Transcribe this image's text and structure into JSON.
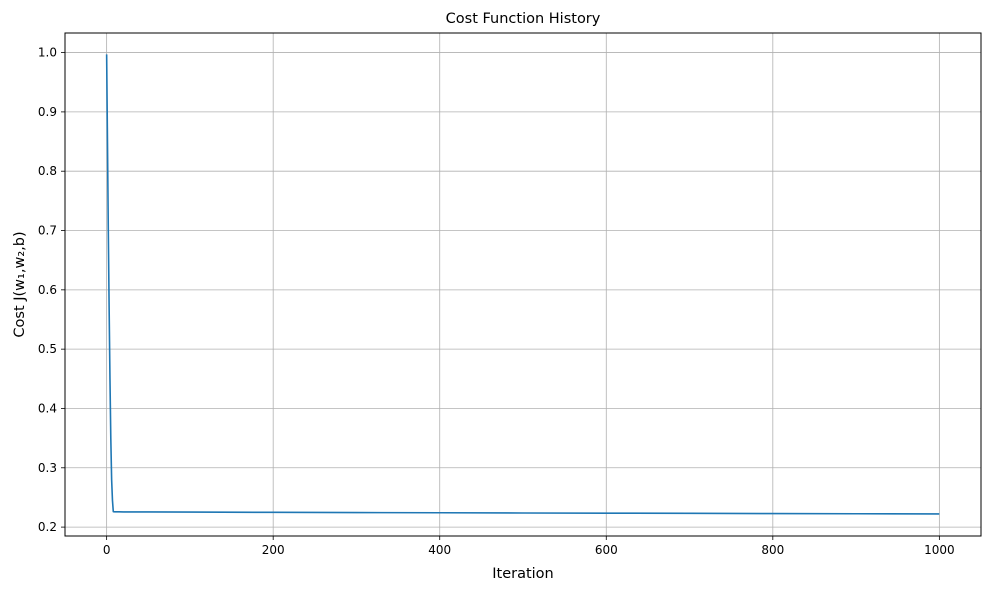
{
  "chart_data": {
    "type": "line",
    "title": "Cost Function History",
    "xlabel": "Iteration",
    "ylabel": "Cost J(w₁,w₂,b)",
    "xlim": [
      -50,
      1050
    ],
    "ylim": [
      0.185,
      1.033
    ],
    "xticks": [
      0,
      200,
      400,
      600,
      800,
      1000
    ],
    "yticks": [
      0.2,
      0.3,
      0.4,
      0.5,
      0.6,
      0.7,
      0.8,
      0.9,
      1.0
    ],
    "grid": true,
    "color": "#1f77b4",
    "series": [
      {
        "x": [
          0,
          1,
          2,
          3,
          4,
          5,
          6,
          7,
          8,
          10,
          15,
          20,
          50,
          100,
          200,
          300,
          400,
          500,
          600,
          700,
          800,
          900,
          1000
        ],
        "y": [
          0.997,
          0.85,
          0.7,
          0.57,
          0.45,
          0.35,
          0.28,
          0.245,
          0.226,
          0.2258,
          0.2257,
          0.2256,
          0.2255,
          0.2253,
          0.2249,
          0.2245,
          0.2242,
          0.2238,
          0.2235,
          0.2232,
          0.2228,
          0.2225,
          0.2222
        ]
      }
    ]
  }
}
